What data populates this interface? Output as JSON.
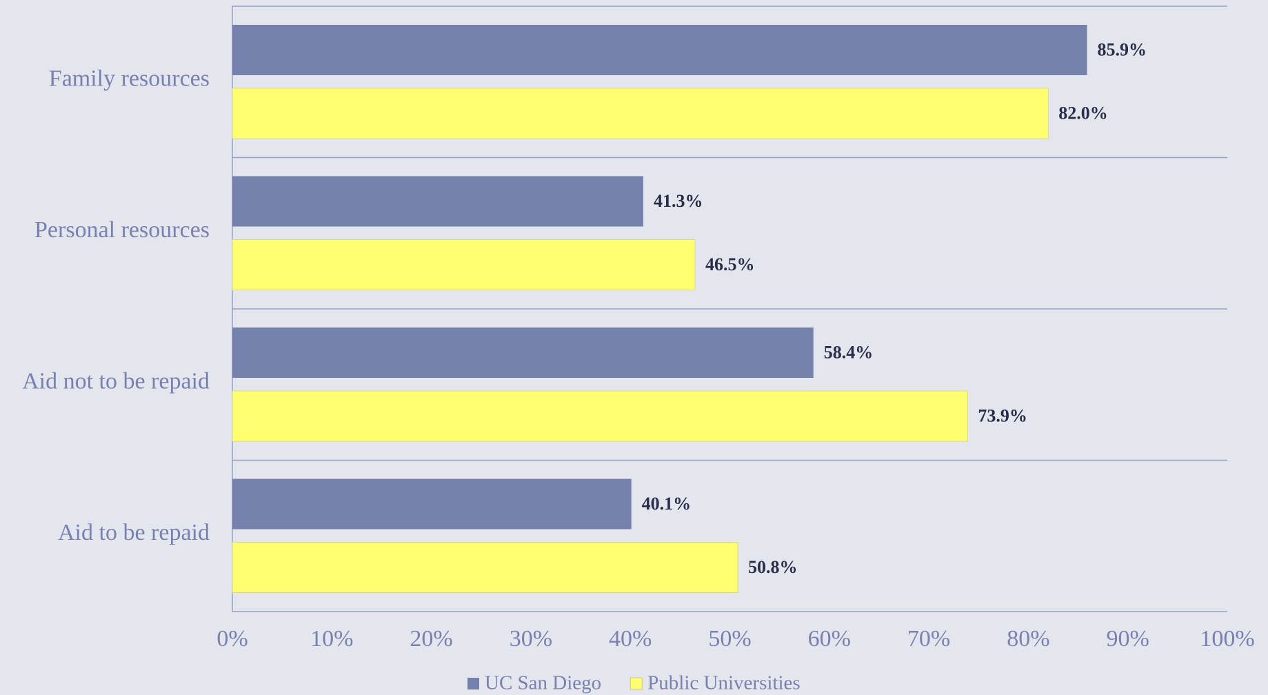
{
  "chart_data": {
    "type": "hbar",
    "categories": [
      "Family resources",
      "Personal resources",
      "Aid not to be repaid",
      "Aid to be repaid"
    ],
    "series": [
      {
        "name": "UC San Diego",
        "color": "#7580ad",
        "values": [
          85.9,
          41.3,
          58.4,
          40.1
        ],
        "value_labels": [
          "85.9%",
          "41.3%",
          "58.4%",
          "40.1%"
        ]
      },
      {
        "name": "Public Universities",
        "color": "#ffff70",
        "values": [
          82.0,
          46.5,
          73.9,
          50.8
        ],
        "value_labels": [
          "82.0%",
          "46.5%",
          "73.9%",
          "50.8%"
        ]
      }
    ],
    "xlim": [
      0,
      100
    ],
    "xticks": [
      {
        "value": 0,
        "label": "0%"
      },
      {
        "value": 10,
        "label": "10%"
      },
      {
        "value": 20,
        "label": "20%"
      },
      {
        "value": 30,
        "label": "30%"
      },
      {
        "value": 40,
        "label": "40%"
      },
      {
        "value": 50,
        "label": "50%"
      },
      {
        "value": 60,
        "label": "60%"
      },
      {
        "value": 70,
        "label": "70%"
      },
      {
        "value": 80,
        "label": "80%"
      },
      {
        "value": 90,
        "label": "90%"
      },
      {
        "value": 100,
        "label": "100%"
      }
    ],
    "legend": "bottom"
  }
}
